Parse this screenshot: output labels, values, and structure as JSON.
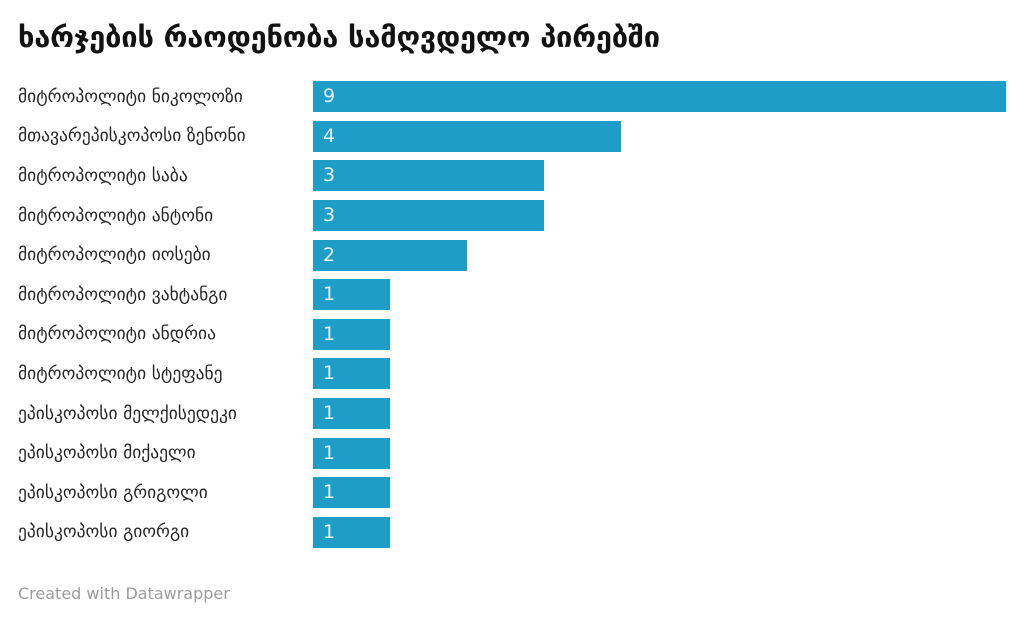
{
  "title": "ხარჯების რაოდენობა სამღვდელო პირებში",
  "footer": {
    "credit": "Created with Datawrapper"
  },
  "colors": {
    "bar": "#1F9DC9",
    "bar_value_label": "rgba(255,255,255,0.88)",
    "title_text": "#121212",
    "category_label": "#262626",
    "credit_text": "#9C9C9C",
    "background": "#FFFFFF"
  },
  "chart_data": {
    "type": "bar",
    "orientation": "horizontal",
    "title": "ხარჯების რაოდენობა სამღვდელო პირებში",
    "xlabel": "",
    "ylabel": "",
    "xlim": [
      0,
      9
    ],
    "grid": false,
    "legend": false,
    "value_label_position": "inside-left",
    "categories": [
      "მიტროპოლიტი ნიკოლოზი",
      "მთავარეპისკოპოსი ზენონი",
      "მიტროპოლიტი საბა",
      "მიტროპოლიტი ანტონი",
      "მიტროპოლიტი იოსები",
      "მიტროპოლიტი ვახტანგი",
      "მიტროპოლიტი ანდრია",
      "მიტროპოლიტი სტეფანე",
      "ეპისკოპოსი მელქისედეკი",
      "ეპისკოპოსი მიქაელი",
      "ეპისკოპოსი გრიგოლი",
      "ეპისკოპოსი გიორგი"
    ],
    "values": [
      9,
      4,
      3,
      3,
      2,
      1,
      1,
      1,
      1,
      1,
      1,
      1
    ]
  }
}
